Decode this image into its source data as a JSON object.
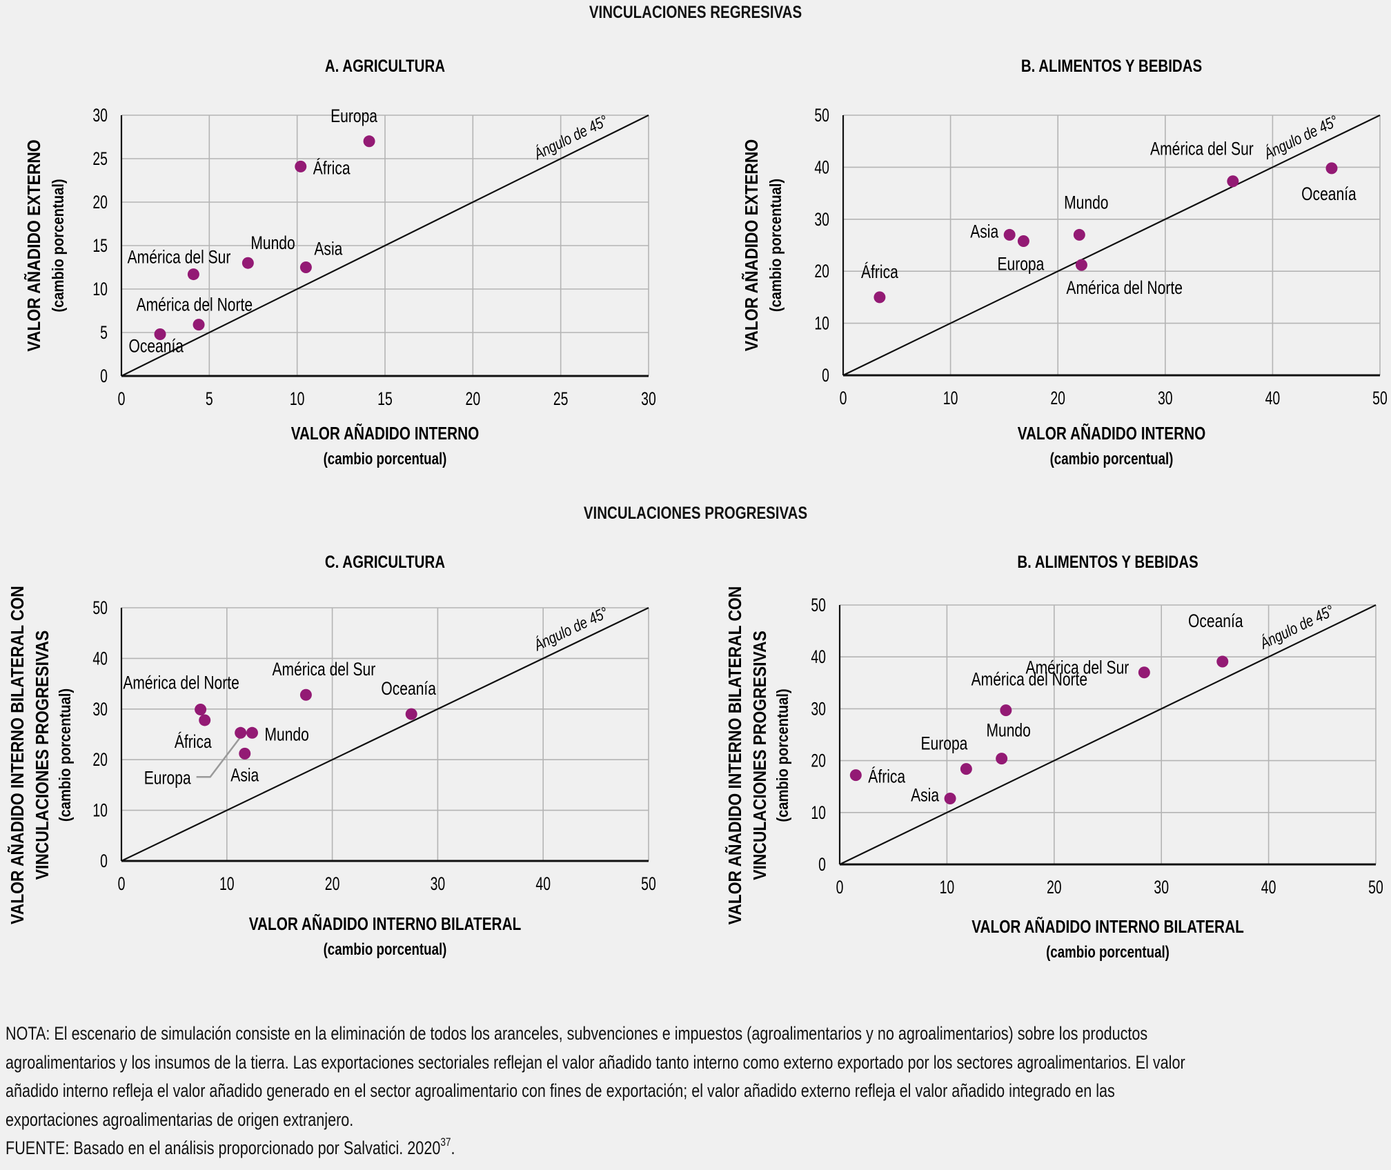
{
  "sections": {
    "regressive_title": "VINCULACIONES REGRESIVAS",
    "progressive_title": "VINCULACIONES PROGRESIVAS"
  },
  "diagonal_label": "Ángulo de 45°",
  "colors": {
    "point": "#931a74",
    "background": "#f0f0f0",
    "grid": "#b4b4b4",
    "axis": "#111111",
    "leader": "#9a9a9a"
  },
  "note": {
    "lines": [
      "NOTA: El escenario de simulación consiste en la eliminación de todos los aranceles, subvenciones e impuestos (agroalimentarios y no agroalimentarios) sobre los productos",
      "agroalimentarios y los insumos de la tierra. Las exportaciones sectoriales reflejan el valor añadido tanto interno como externo exportado por los sectores agroalimentarios. El valor",
      "añadido interno refleja el valor añadido generado en el sector agroalimentario con fines de exportación; el valor añadido externo refleja el valor añadido integrado en las",
      "exportaciones agroalimentarias de origen extranjero."
    ],
    "source_prefix": "FUENTE: Basado en el análisis proporcionado por Salvatici. 2020",
    "source_superscript": "37",
    "source_suffix": "."
  },
  "chart_data": [
    {
      "id": "A",
      "type": "scatter",
      "title": "A. AGRICULTURA",
      "xlabel": "VALOR AÑADIDO INTERNO",
      "xlabel_sub": "(cambio porcentual)",
      "ylabel": "VALOR AÑADIDO EXTERNO",
      "ylabel_line2": "",
      "ylabel_sub": "(cambio porcentual)",
      "xlim": [
        0,
        30
      ],
      "ylim": [
        0,
        30
      ],
      "xticks": [
        0,
        5,
        10,
        15,
        20,
        25,
        30
      ],
      "yticks": [
        0,
        5,
        10,
        15,
        20,
        25,
        30
      ],
      "grid": true,
      "reference_line": "y = x",
      "points": [
        {
          "label": "Europa",
          "x": 14.1,
          "y": 27.0,
          "label_pos": "above"
        },
        {
          "label": "África",
          "x": 10.2,
          "y": 24.1,
          "label_pos": "right"
        },
        {
          "label": "Mundo",
          "x": 7.2,
          "y": 13.0,
          "label_pos": "above-right"
        },
        {
          "label": "Asia",
          "x": 10.5,
          "y": 12.5,
          "label_pos": "above-right"
        },
        {
          "label": "América del Sur",
          "x": 4.1,
          "y": 11.7,
          "label_pos": "above-left"
        },
        {
          "label": "América del Norte",
          "x": 4.4,
          "y": 5.9,
          "label_pos": "above-left"
        },
        {
          "label": "Oceanía",
          "x": 2.2,
          "y": 4.8,
          "label_pos": "below-left"
        }
      ]
    },
    {
      "id": "B",
      "type": "scatter",
      "title": "B. ALIMENTOS Y BEBIDAS",
      "xlabel": "VALOR AÑADIDO INTERNO",
      "xlabel_sub": "(cambio porcentual)",
      "ylabel": "VALOR AÑADIDO EXTERNO",
      "ylabel_line2": "",
      "ylabel_sub": "(cambio porcentual)",
      "xlim": [
        0,
        50
      ],
      "ylim": [
        0,
        50
      ],
      "xticks": [
        0,
        10,
        20,
        30,
        40,
        50
      ],
      "yticks": [
        0,
        10,
        20,
        30,
        40,
        50
      ],
      "grid": true,
      "reference_line": "y = x",
      "points": [
        {
          "label": "África",
          "x": 3.4,
          "y": 15.0,
          "label_pos": "above"
        },
        {
          "label": "Asia",
          "x": 15.5,
          "y": 27.0,
          "label_pos": "left"
        },
        {
          "label": "Europa",
          "x": 16.8,
          "y": 25.8,
          "label_pos": "below"
        },
        {
          "label": "Mundo",
          "x": 22.0,
          "y": 27.0,
          "label_pos": "above"
        },
        {
          "label": "América del Norte",
          "x": 22.2,
          "y": 21.2,
          "label_pos": "below-right"
        },
        {
          "label": "América del Sur",
          "x": 36.3,
          "y": 37.3,
          "label_pos": "above-left"
        },
        {
          "label": "Oceanía",
          "x": 45.5,
          "y": 39.8,
          "label_pos": "below"
        }
      ]
    },
    {
      "id": "C",
      "type": "scatter",
      "title": "C. AGRICULTURA",
      "xlabel": "VALOR AÑADIDO INTERNO BILATERAL",
      "xlabel_sub": "(cambio porcentual)",
      "ylabel": "VALOR AÑADIDO INTERNO BILATERAL CON",
      "ylabel_line2": "VINCULACIONES PROGRESIVAS",
      "ylabel_sub": "(cambio porcentual)",
      "xlim": [
        0,
        50
      ],
      "ylim": [
        0,
        50
      ],
      "xticks": [
        0,
        10,
        20,
        30,
        40,
        50
      ],
      "yticks": [
        0,
        10,
        20,
        30,
        40,
        50
      ],
      "grid": true,
      "reference_line": "y = x",
      "points": [
        {
          "label": "América del Norte",
          "x": 7.5,
          "y": 29.9,
          "label_pos": "above"
        },
        {
          "label": "África",
          "x": 7.9,
          "y": 27.8,
          "label_pos": "below-left"
        },
        {
          "label": "Europa",
          "x": 11.3,
          "y": 25.3,
          "label_pos": "leader-below-left"
        },
        {
          "label": "Mundo",
          "x": 12.4,
          "y": 25.3,
          "label_pos": "right"
        },
        {
          "label": "Asia",
          "x": 11.7,
          "y": 21.2,
          "label_pos": "below"
        },
        {
          "label": "América del Sur",
          "x": 17.5,
          "y": 32.8,
          "label_pos": "above"
        },
        {
          "label": "Oceanía",
          "x": 27.5,
          "y": 29.0,
          "label_pos": "above"
        }
      ]
    },
    {
      "id": "D",
      "type": "scatter",
      "title": "B. ALIMENTOS Y BEBIDAS",
      "xlabel": "VALOR AÑADIDO INTERNO BILATERAL",
      "xlabel_sub": "(cambio porcentual)",
      "ylabel": "VALOR AÑADIDO INTERNO BILATERAL CON",
      "ylabel_line2": "VINCULACIONES PROGRESIVAS",
      "ylabel_sub": "(cambio porcentual)",
      "xlim": [
        0,
        50
      ],
      "ylim": [
        0,
        50
      ],
      "xticks": [
        0,
        10,
        20,
        30,
        40,
        50
      ],
      "yticks": [
        0,
        10,
        20,
        30,
        40,
        50
      ],
      "grid": true,
      "reference_line": "y = x",
      "points": [
        {
          "label": "África",
          "x": 1.5,
          "y": 17.2,
          "label_pos": "right"
        },
        {
          "label": "Asia",
          "x": 10.3,
          "y": 12.7,
          "label_pos": "left"
        },
        {
          "label": "Europa",
          "x": 11.8,
          "y": 18.4,
          "label_pos": "above-left"
        },
        {
          "label": "Mundo",
          "x": 15.1,
          "y": 20.4,
          "label_pos": "above"
        },
        {
          "label": "América del Norte",
          "x": 15.5,
          "y": 29.7,
          "label_pos": "above"
        },
        {
          "label": "América del Sur",
          "x": 28.4,
          "y": 37.0,
          "label_pos": "left"
        },
        {
          "label": "Oceanía",
          "x": 35.7,
          "y": 39.1,
          "label_pos": "above"
        }
      ]
    }
  ]
}
